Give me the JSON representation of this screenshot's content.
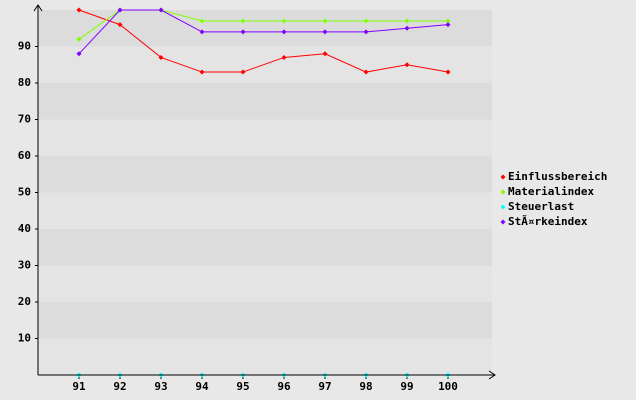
{
  "chart_data": {
    "type": "line",
    "categories": [
      "91",
      "92",
      "93",
      "94",
      "95",
      "96",
      "97",
      "98",
      "99",
      "100"
    ],
    "series": [
      {
        "name": "Einflussbereich",
        "color": "#ff0000",
        "values": [
          100,
          96,
          87,
          83,
          83,
          87,
          88,
          83,
          85,
          83
        ]
      },
      {
        "name": "Materialindex",
        "color": "#80ff00",
        "values": [
          92,
          100,
          100,
          97,
          97,
          97,
          97,
          97,
          97,
          97
        ]
      },
      {
        "name": "Steuerlast",
        "color": "#00ffff",
        "values": [
          0,
          0,
          0,
          0,
          0,
          0,
          0,
          0,
          0,
          0
        ]
      },
      {
        "name": "StÃ¤rkeindex",
        "color": "#8000ff",
        "values": [
          88,
          100,
          100,
          94,
          94,
          94,
          94,
          94,
          95,
          96
        ]
      }
    ],
    "ylim": [
      0,
      100
    ],
    "yticks": [
      10,
      20,
      30,
      40,
      50,
      60,
      70,
      80,
      90
    ],
    "grid": true,
    "legend": "right"
  }
}
